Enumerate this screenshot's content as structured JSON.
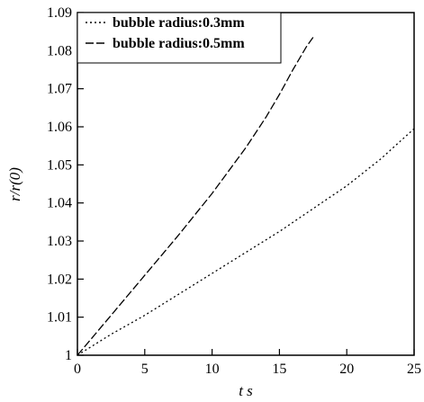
{
  "chart_data": {
    "type": "line",
    "title": "",
    "xlabel": "t s",
    "ylabel": "r/r(0)",
    "xlim": [
      0,
      25
    ],
    "ylim": [
      1,
      1.09
    ],
    "xticks": [
      "0",
      "5",
      "10",
      "15",
      "20",
      "25"
    ],
    "yticks": [
      "1",
      "1.01",
      "1.02",
      "1.03",
      "1.04",
      "1.05",
      "1.06",
      "1.07",
      "1.08",
      "1.09"
    ],
    "grid": false,
    "legend_position": "top-left",
    "series": [
      {
        "name": "bubble radius:0.3mm",
        "style": "dotted",
        "x": [
          0,
          2.5,
          5,
          7.5,
          10,
          12.5,
          15,
          17.5,
          20,
          22.5,
          25
        ],
        "y": [
          1.0,
          1.0055,
          1.0105,
          1.016,
          1.0215,
          1.027,
          1.0325,
          1.0385,
          1.0445,
          1.0515,
          1.0595
        ]
      },
      {
        "name": "bubble radius:0.5mm",
        "style": "dashed",
        "x": [
          0,
          2.5,
          5,
          7.5,
          10,
          12.5,
          14,
          15,
          16,
          17,
          17.5
        ],
        "y": [
          1.0,
          1.0105,
          1.021,
          1.0315,
          1.0425,
          1.0545,
          1.0625,
          1.0685,
          1.075,
          1.081,
          1.0835
        ]
      }
    ]
  }
}
